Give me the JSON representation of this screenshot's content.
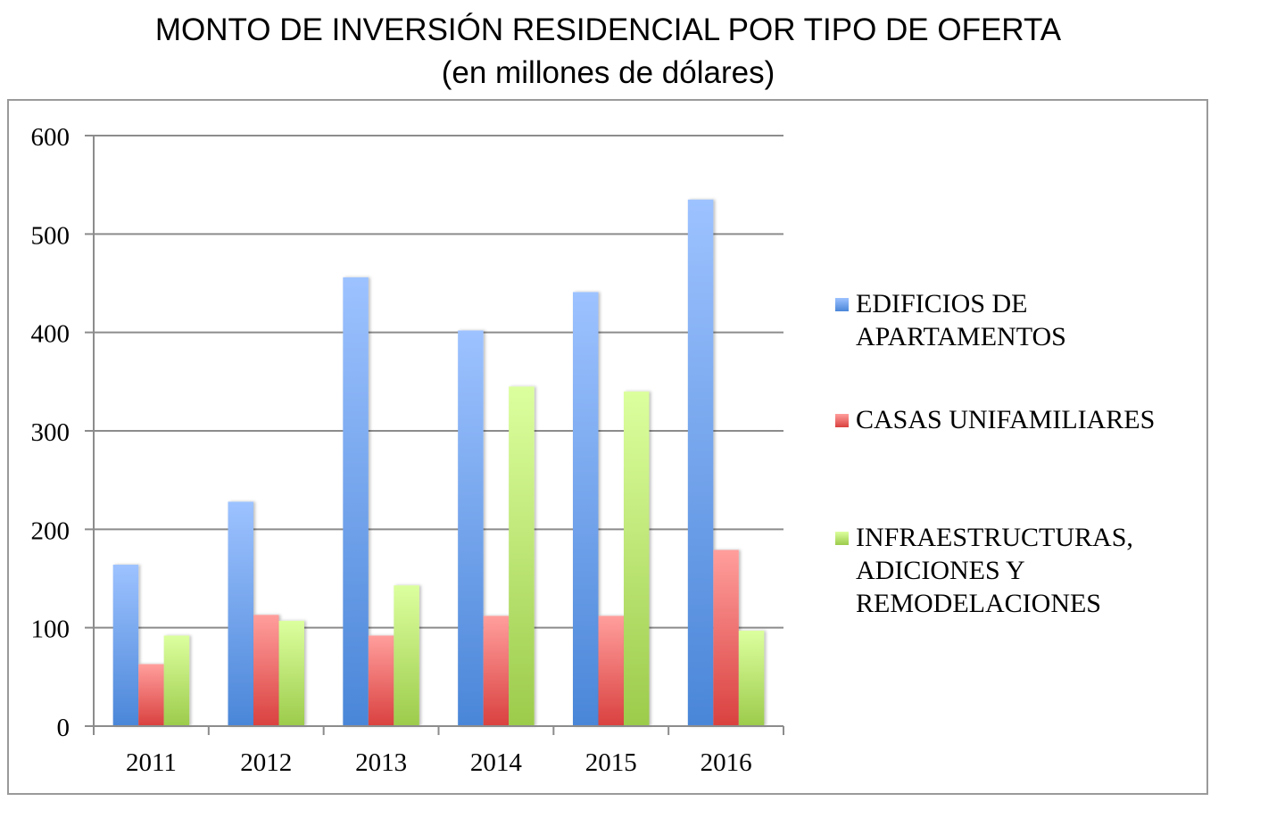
{
  "chart_data": {
    "type": "bar",
    "title": "MONTO DE INVERSIÓN RESIDENCIAL POR TIPO DE OFERTA",
    "subtitle": "(en millones de dólares)",
    "xlabel": "",
    "ylabel": "",
    "categories": [
      "2011",
      "2012",
      "2013",
      "2014",
      "2015",
      "2016"
    ],
    "ylim": [
      0,
      600
    ],
    "yticks": [
      "0",
      "100",
      "200",
      "300",
      "400",
      "500",
      "600"
    ],
    "grid": true,
    "legend_position": "right",
    "series": [
      {
        "name": "EDIFICIOS DE\nAPARTAMENTOS",
        "color": "#4a86d8",
        "color_light": "#9dc2ff",
        "values": [
          164,
          228,
          456,
          402,
          441,
          535
        ]
      },
      {
        "name": "CASAS UNIFAMILIARES",
        "color": "#d9413f",
        "color_light": "#ff9e9c",
        "values": [
          63,
          113,
          92,
          112,
          112,
          179
        ]
      },
      {
        "name": "INFRAESTRUCTURAS,\nADICIONES Y\nREMODELACIONES",
        "color": "#9ccb4b",
        "color_light": "#dcff9e",
        "values": [
          92,
          107,
          143,
          345,
          340,
          97
        ]
      }
    ]
  }
}
